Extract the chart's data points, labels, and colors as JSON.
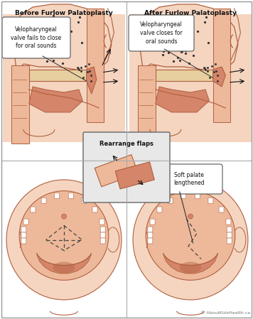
{
  "title_left": "Before Furlow Palatoplasty",
  "title_right": "After Furlow Palatoplasty",
  "label_before": "Velopharyngeal\nvalve fails to close\nfor oral sounds",
  "label_after": "Velopharyngeal\nvalve closes for\noral sounds",
  "label_flaps": "Rearrange flaps",
  "label_soft": "Soft palate\nlengthened",
  "copyright": "© AboutKidsHealth.ca",
  "bg_color": "#ffffff",
  "skin_color": "#d4856a",
  "skin_light": "#edb99a",
  "skin_lighter": "#f5d5c0",
  "skin_dark": "#b06040",
  "bone_color": "#e8cfa0",
  "text_color": "#111111",
  "gray_bg": "#e8e8e8"
}
